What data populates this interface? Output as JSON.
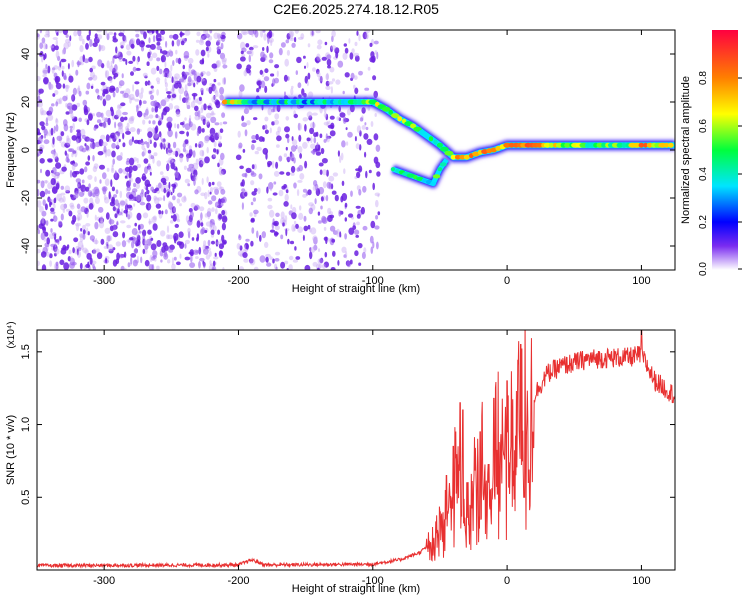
{
  "title": "C2E6.2025.274.18.12.R05",
  "chart_data": [
    {
      "type": "heatmap",
      "xlabel": "Height of straight line (km)",
      "ylabel": "Frequency (Hz)",
      "xlim": [
        -350,
        125
      ],
      "ylim": [
        -50,
        50
      ],
      "xticks": [
        -300,
        -200,
        -100,
        0,
        100
      ],
      "yticks": [
        -40,
        -20,
        0,
        20,
        40
      ],
      "colorbar": {
        "label": "Normalized spectral amplitude",
        "range": [
          0,
          1
        ],
        "ticks": [
          "0.0",
          "0.2",
          "0.4",
          "0.6",
          "0.8"
        ],
        "colormap": [
          "#ffffff",
          "#7a2cf0",
          "#0000ff",
          "#00e5ff",
          "#00ff3c",
          "#ffff00",
          "#ff8000",
          "#ff0040"
        ]
      },
      "noise_region": {
        "x_start": -350,
        "x_end": -95,
        "gap_x": [
          -210,
          -200
        ],
        "amplitude": 0.15
      },
      "signal_track": {
        "x": [
          -210,
          -190,
          -170,
          -150,
          -130,
          -110,
          -100,
          -90,
          -80,
          -70,
          -60,
          -50,
          -40,
          -30,
          -20,
          -10,
          0,
          10,
          30,
          60,
          90,
          100,
          125
        ],
        "freq": [
          20,
          20,
          20,
          20,
          20,
          20,
          20,
          17,
          13,
          10,
          6,
          2,
          -3,
          -3,
          -1,
          0,
          2,
          2,
          2,
          2,
          2,
          2,
          2
        ],
        "amplitude": [
          0.7,
          0.35,
          0.4,
          0.35,
          0.4,
          0.5,
          0.6,
          0.55,
          0.55,
          0.5,
          0.45,
          0.5,
          0.75,
          0.8,
          0.8,
          0.8,
          0.7,
          0.85,
          0.7,
          0.5,
          0.5,
          0.8,
          0.6
        ]
      },
      "secondary_track": {
        "x": [
          -85,
          -75,
          -65,
          -55,
          -50,
          -45
        ],
        "freq": [
          -8,
          -10,
          -12,
          -14,
          -8,
          -4
        ],
        "amplitude": [
          0.35,
          0.4,
          0.4,
          0.45,
          0.5,
          0.4
        ]
      }
    },
    {
      "type": "line",
      "xlabel": "Height of straight line (km)",
      "ylabel": "SNR (10 * v/v)",
      "yexponent": "(x10⁴)",
      "xlim": [
        -350,
        125
      ],
      "ylim": [
        0,
        16500
      ],
      "xticks": [
        -300,
        -200,
        -100,
        0,
        100
      ],
      "yticks": [
        "0.5",
        "1.0",
        "1.5"
      ],
      "ytick_values": [
        5000,
        10000,
        15000
      ],
      "color": "#e83030",
      "envelope": {
        "x": [
          -350,
          -200,
          -190,
          -180,
          -100,
          -80,
          -65,
          -55,
          -45,
          -40,
          -35,
          -30,
          -25,
          -20,
          -10,
          -5,
          0,
          5,
          10,
          20,
          30,
          40,
          60,
          80,
          90,
          100,
          110,
          125
        ],
        "y": [
          300,
          350,
          700,
          350,
          400,
          700,
          1200,
          2000,
          4500,
          6000,
          7500,
          4000,
          6000,
          7500,
          8500,
          9000,
          9500,
          9200,
          11500,
          12000,
          13500,
          14000,
          14500,
          14600,
          14600,
          14800,
          13000,
          12000
        ]
      },
      "peaks": {
        "x": [
          -50,
          -45,
          -40,
          -35,
          -33,
          -30,
          -20,
          -10,
          0,
          10,
          13,
          100
        ],
        "y": [
          4000,
          6500,
          8500,
          11500,
          11000,
          6000,
          9500,
          11800,
          13000,
          15500,
          5000,
          16500
        ]
      }
    }
  ]
}
